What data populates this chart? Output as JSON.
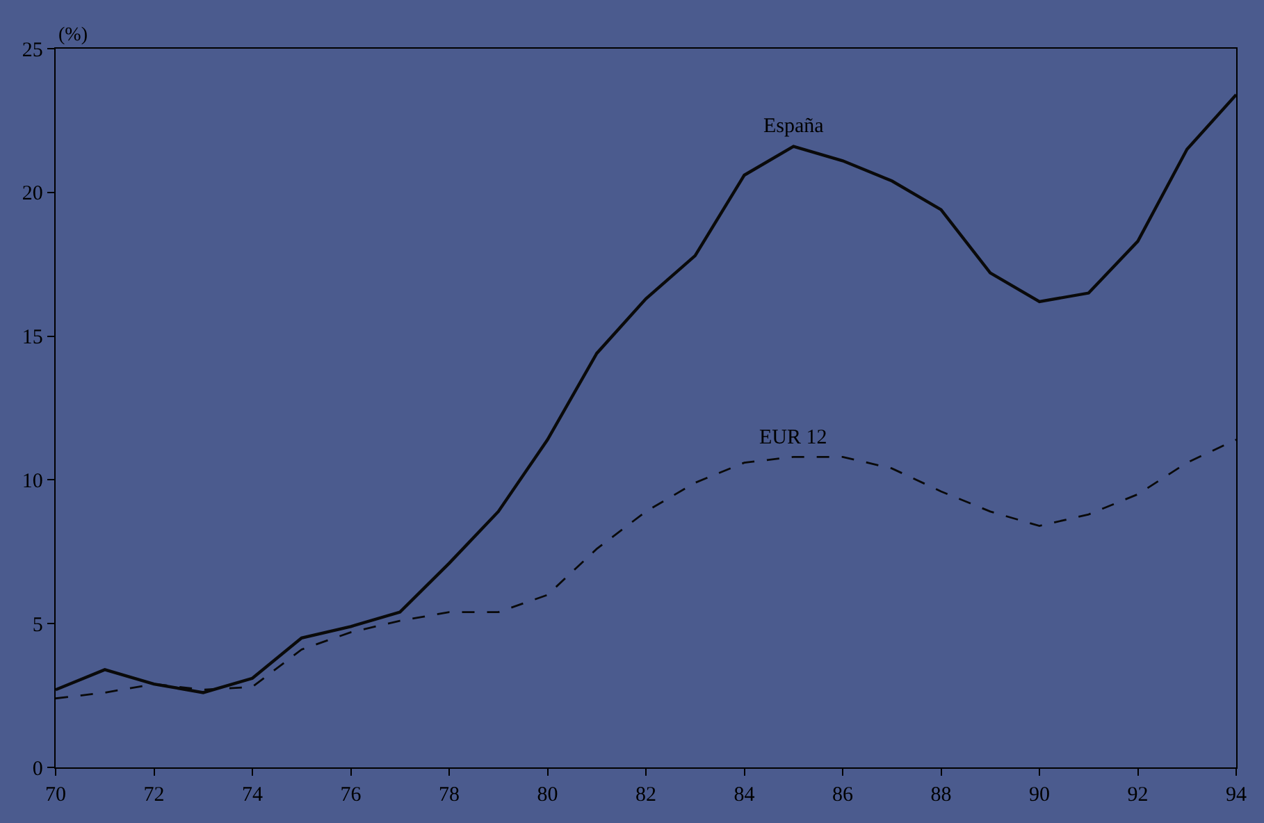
{
  "chart_data": {
    "type": "line",
    "ylabel": "(%)",
    "x": [
      70,
      71,
      72,
      73,
      74,
      75,
      76,
      77,
      78,
      79,
      80,
      81,
      82,
      83,
      84,
      85,
      86,
      87,
      88,
      89,
      90,
      91,
      92,
      93,
      94
    ],
    "series": [
      {
        "name": "España",
        "color": "#0a0a0a",
        "line_style": "solid",
        "values": [
          2.7,
          3.4,
          2.9,
          2.6,
          3.1,
          4.5,
          4.9,
          5.4,
          7.1,
          8.9,
          11.4,
          14.4,
          16.3,
          17.8,
          20.6,
          21.6,
          21.1,
          20.4,
          19.4,
          17.2,
          16.2,
          16.5,
          18.3,
          21.5,
          23.4
        ]
      },
      {
        "name": "EUR 12",
        "color": "#0a0a0a",
        "line_style": "dashed",
        "values": [
          2.4,
          2.6,
          2.9,
          2.7,
          2.8,
          4.1,
          4.7,
          5.1,
          5.4,
          5.4,
          6.0,
          7.6,
          8.9,
          9.9,
          10.6,
          10.8,
          10.8,
          10.4,
          9.6,
          8.9,
          8.4,
          8.8,
          9.5,
          10.6,
          11.4
        ]
      }
    ],
    "xlim": [
      70,
      94
    ],
    "xticks": [
      70,
      72,
      74,
      76,
      78,
      80,
      82,
      84,
      86,
      88,
      90,
      92,
      94
    ],
    "ylim": [
      0,
      25
    ],
    "yticks": [
      0,
      5,
      10,
      15,
      20,
      25
    ],
    "grid": false,
    "legend": false,
    "marker": "none"
  }
}
